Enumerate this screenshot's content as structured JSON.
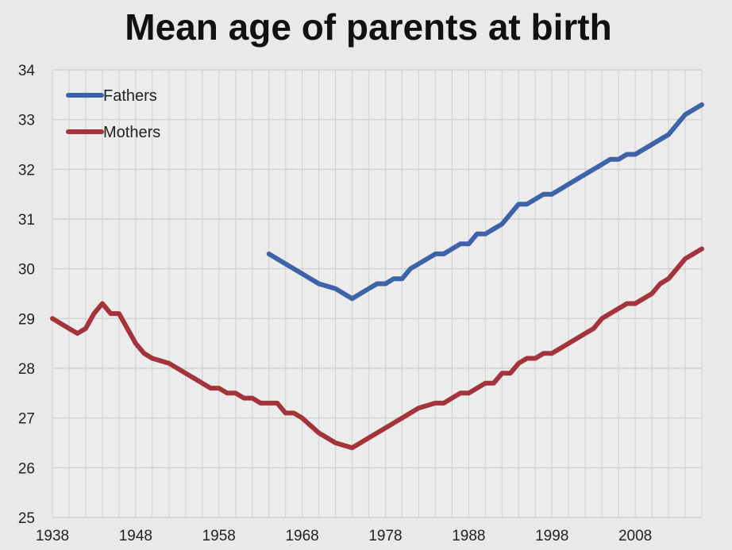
{
  "chart_data": {
    "type": "line",
    "title": "Mean age of parents at birth",
    "xlabel": "",
    "ylabel": "",
    "xlim": [
      1938,
      2016
    ],
    "ylim": [
      25,
      34
    ],
    "x_ticks": [
      1938,
      1948,
      1958,
      1968,
      1978,
      1988,
      1998,
      2008
    ],
    "y_ticks": [
      25,
      26,
      27,
      28,
      29,
      30,
      31,
      32,
      33,
      34
    ],
    "grid": true,
    "legend_position": "top-left",
    "series": [
      {
        "name": "Fathers",
        "color": "#3f63a8",
        "x": [
          1964,
          1966,
          1968,
          1970,
          1972,
          1973,
          1974,
          1976,
          1977,
          1978,
          1979,
          1980,
          1981,
          1982,
          1984,
          1985,
          1986,
          1987,
          1988,
          1989,
          1990,
          1991,
          1992,
          1994,
          1995,
          1996,
          1997,
          1998,
          1999,
          2000,
          2002,
          2004,
          2005,
          2006,
          2007,
          2008,
          2010,
          2012,
          2014,
          2016
        ],
        "values": [
          30.3,
          30.1,
          29.9,
          29.7,
          29.6,
          29.5,
          29.4,
          29.6,
          29.7,
          29.7,
          29.8,
          29.8,
          30.0,
          30.1,
          30.3,
          30.3,
          30.4,
          30.5,
          30.5,
          30.7,
          30.7,
          30.8,
          30.9,
          31.3,
          31.3,
          31.4,
          31.5,
          31.5,
          31.6,
          31.7,
          31.9,
          32.1,
          32.2,
          32.2,
          32.3,
          32.3,
          32.5,
          32.7,
          33.1,
          33.3
        ]
      },
      {
        "name": "Mothers",
        "color": "#a3343b",
        "x": [
          1938,
          1940,
          1941,
          1942,
          1943,
          1944,
          1945,
          1946,
          1948,
          1949,
          1950,
          1952,
          1954,
          1956,
          1957,
          1958,
          1959,
          1960,
          1961,
          1962,
          1963,
          1964,
          1965,
          1966,
          1967,
          1968,
          1970,
          1972,
          1974,
          1976,
          1978,
          1980,
          1982,
          1984,
          1985,
          1986,
          1987,
          1988,
          1990,
          1991,
          1992,
          1993,
          1994,
          1995,
          1996,
          1997,
          1998,
          2000,
          2002,
          2003,
          2004,
          2006,
          2007,
          2008,
          2010,
          2011,
          2012,
          2013,
          2014,
          2016
        ],
        "values": [
          29.0,
          28.8,
          28.7,
          28.8,
          29.1,
          29.3,
          29.1,
          29.1,
          28.5,
          28.3,
          28.2,
          28.1,
          27.9,
          27.7,
          27.6,
          27.6,
          27.5,
          27.5,
          27.4,
          27.4,
          27.3,
          27.3,
          27.3,
          27.1,
          27.1,
          27.0,
          26.7,
          26.5,
          26.4,
          26.6,
          26.8,
          27.0,
          27.2,
          27.3,
          27.3,
          27.4,
          27.5,
          27.5,
          27.7,
          27.7,
          27.9,
          27.9,
          28.1,
          28.2,
          28.2,
          28.3,
          28.3,
          28.5,
          28.7,
          28.8,
          29.0,
          29.2,
          29.3,
          29.3,
          29.5,
          29.7,
          29.8,
          30.0,
          30.2,
          30.4
        ]
      }
    ]
  }
}
